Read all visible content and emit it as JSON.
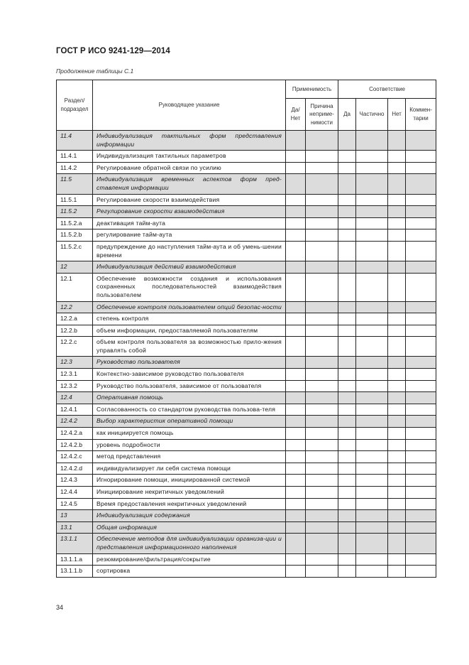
{
  "header": {
    "title": "ГОСТ Р ИСО 9241-129—2014"
  },
  "caption": "Продолжение таблицы С.1",
  "table": {
    "headers": {
      "section": "Раздел/ подраздел",
      "guideline": "Руководящее указание",
      "applicability": "Применимость",
      "yes_no": "Да/ Нет",
      "reason": "Причина неприме-нимости",
      "conformance": "Соответствие",
      "yes": "Да",
      "partial": "Частично",
      "no": "Нет",
      "comments": "Коммен-тарии"
    },
    "rows": [
      {
        "num": "11.4",
        "text": "Индивидуализация тактильных форм представления информации",
        "group": true
      },
      {
        "num": "11.4.1",
        "text": "Индивидуализация тактильных параметров",
        "group": false
      },
      {
        "num": "11.4.2",
        "text": "Регулирование обратной связи по усилию",
        "group": false
      },
      {
        "num": "11.5",
        "text": "Индивидуализация временных аспектов форм пред-ставления информации",
        "group": true
      },
      {
        "num": "11.5.1",
        "text": "Регулирование скорости взаимодействия",
        "group": false
      },
      {
        "num": "11.5.2",
        "text": "Регулирование скорости взаимодействия",
        "group": true
      },
      {
        "num": "11.5.2.a",
        "text": "деактивация тайм-аута",
        "group": false
      },
      {
        "num": "11.5.2.b",
        "text": "регулирование тайм-аута",
        "group": false
      },
      {
        "num": "11.5.2.c",
        "text": "предупреждение до наступления тайм-аута и об умень-шении времени",
        "group": false
      },
      {
        "num": "12",
        "text": "Индивидуализация действий взаимодействия",
        "group": true
      },
      {
        "num": "12.1",
        "text": "Обеспечение возможности создания и использования сохраненных последовательностей взаимодействия пользователем",
        "group": false
      },
      {
        "num": "12.2",
        "text": "Обеспечение контроля пользователем опций безопас-ности",
        "group": true
      },
      {
        "num": "12.2.a",
        "text": "степень контроля",
        "group": false
      },
      {
        "num": "12.2.b",
        "text": "объем информации, предоставляемой пользователям",
        "group": false
      },
      {
        "num": "12.2.c",
        "text": "объем контроля пользователя за возможностью прило-жения управлять собой",
        "group": false
      },
      {
        "num": "12.3",
        "text": "Руководство пользователя",
        "group": true
      },
      {
        "num": "12.3.1",
        "text": "Контекстно-зависимое руководство пользователя",
        "group": false
      },
      {
        "num": "12.3.2",
        "text": "Руководство пользователя, зависимое от пользователя",
        "group": false
      },
      {
        "num": "12.4",
        "text": "Оперативная помощь",
        "group": true
      },
      {
        "num": "12.4.1",
        "text": "Согласованность со стандартом руководства пользова-теля",
        "group": false
      },
      {
        "num": "12.4.2",
        "text": "Выбор характеристик оперативной помощи",
        "group": true
      },
      {
        "num": "12.4.2.a",
        "text": "как инициируется помощь",
        "group": false
      },
      {
        "num": "12.4.2.b",
        "text": "уровень подробности",
        "group": false
      },
      {
        "num": "12.4.2.c",
        "text": "метод представления",
        "group": false
      },
      {
        "num": "12.4.2.d",
        "text": "индивидуализирует ли себя система помощи",
        "group": false
      },
      {
        "num": "12.4.3",
        "text": "Игнорирование помощи, инициированной системой",
        "group": false
      },
      {
        "num": "12.4.4",
        "text": "Инициирование некритичных уведомлений",
        "group": false
      },
      {
        "num": "12.4.5",
        "text": "Время предоставления некритичных уведомлений",
        "group": false
      },
      {
        "num": "13",
        "text": "Индивидуализация содержания",
        "group": true
      },
      {
        "num": "13.1",
        "text": "Общая информация",
        "group": true
      },
      {
        "num": "13.1.1",
        "text": "Обеспечение методов для индивидуализации организа-ции и представления информационного наполнения",
        "group": true
      },
      {
        "num": "13.1.1.a",
        "text": "резюмирование/фильтрация/сокрытие",
        "group": false
      },
      {
        "num": "13.1.1.b",
        "text": "сортировка",
        "group": false
      }
    ]
  },
  "footer": {
    "page_number": "34"
  },
  "colors": {
    "group_row_bg": "#dcdcdc",
    "border": "#222222"
  }
}
